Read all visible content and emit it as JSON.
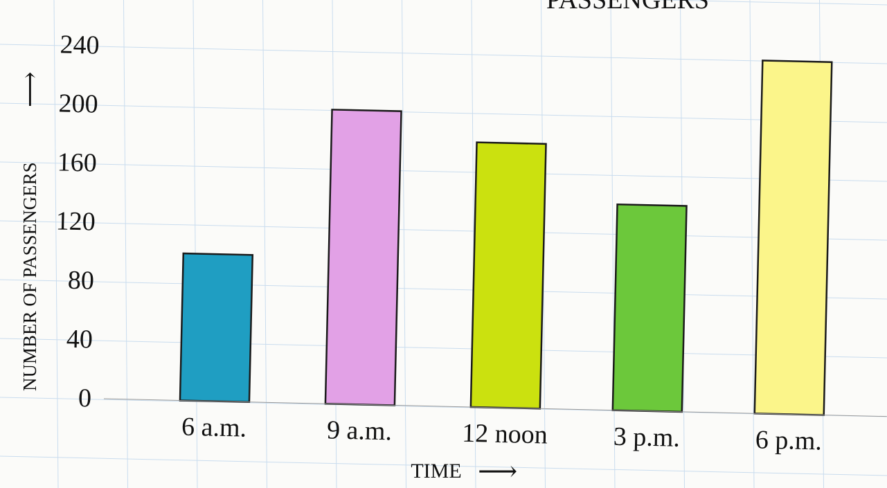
{
  "chart_data": {
    "type": "bar",
    "title": "PASSENGERS",
    "xlabel": "TIME",
    "ylabel": "NUMBER OF PASSENGERS",
    "xlabel_arrow": "⟶",
    "ylabel_arrow": "⟶",
    "categories": [
      "6 a.m.",
      "9 a.m.",
      "12 noon",
      "3 p.m.",
      "6 p.m."
    ],
    "values": [
      100,
      200,
      180,
      140,
      240
    ],
    "colors": [
      "#1f9ec2",
      "#e2a1e6",
      "#cbe10f",
      "#6cc83b",
      "#fbf58a"
    ],
    "ylim": [
      0,
      240
    ],
    "yticks": [
      0,
      40,
      80,
      120,
      160,
      200,
      240
    ],
    "grid": true
  }
}
